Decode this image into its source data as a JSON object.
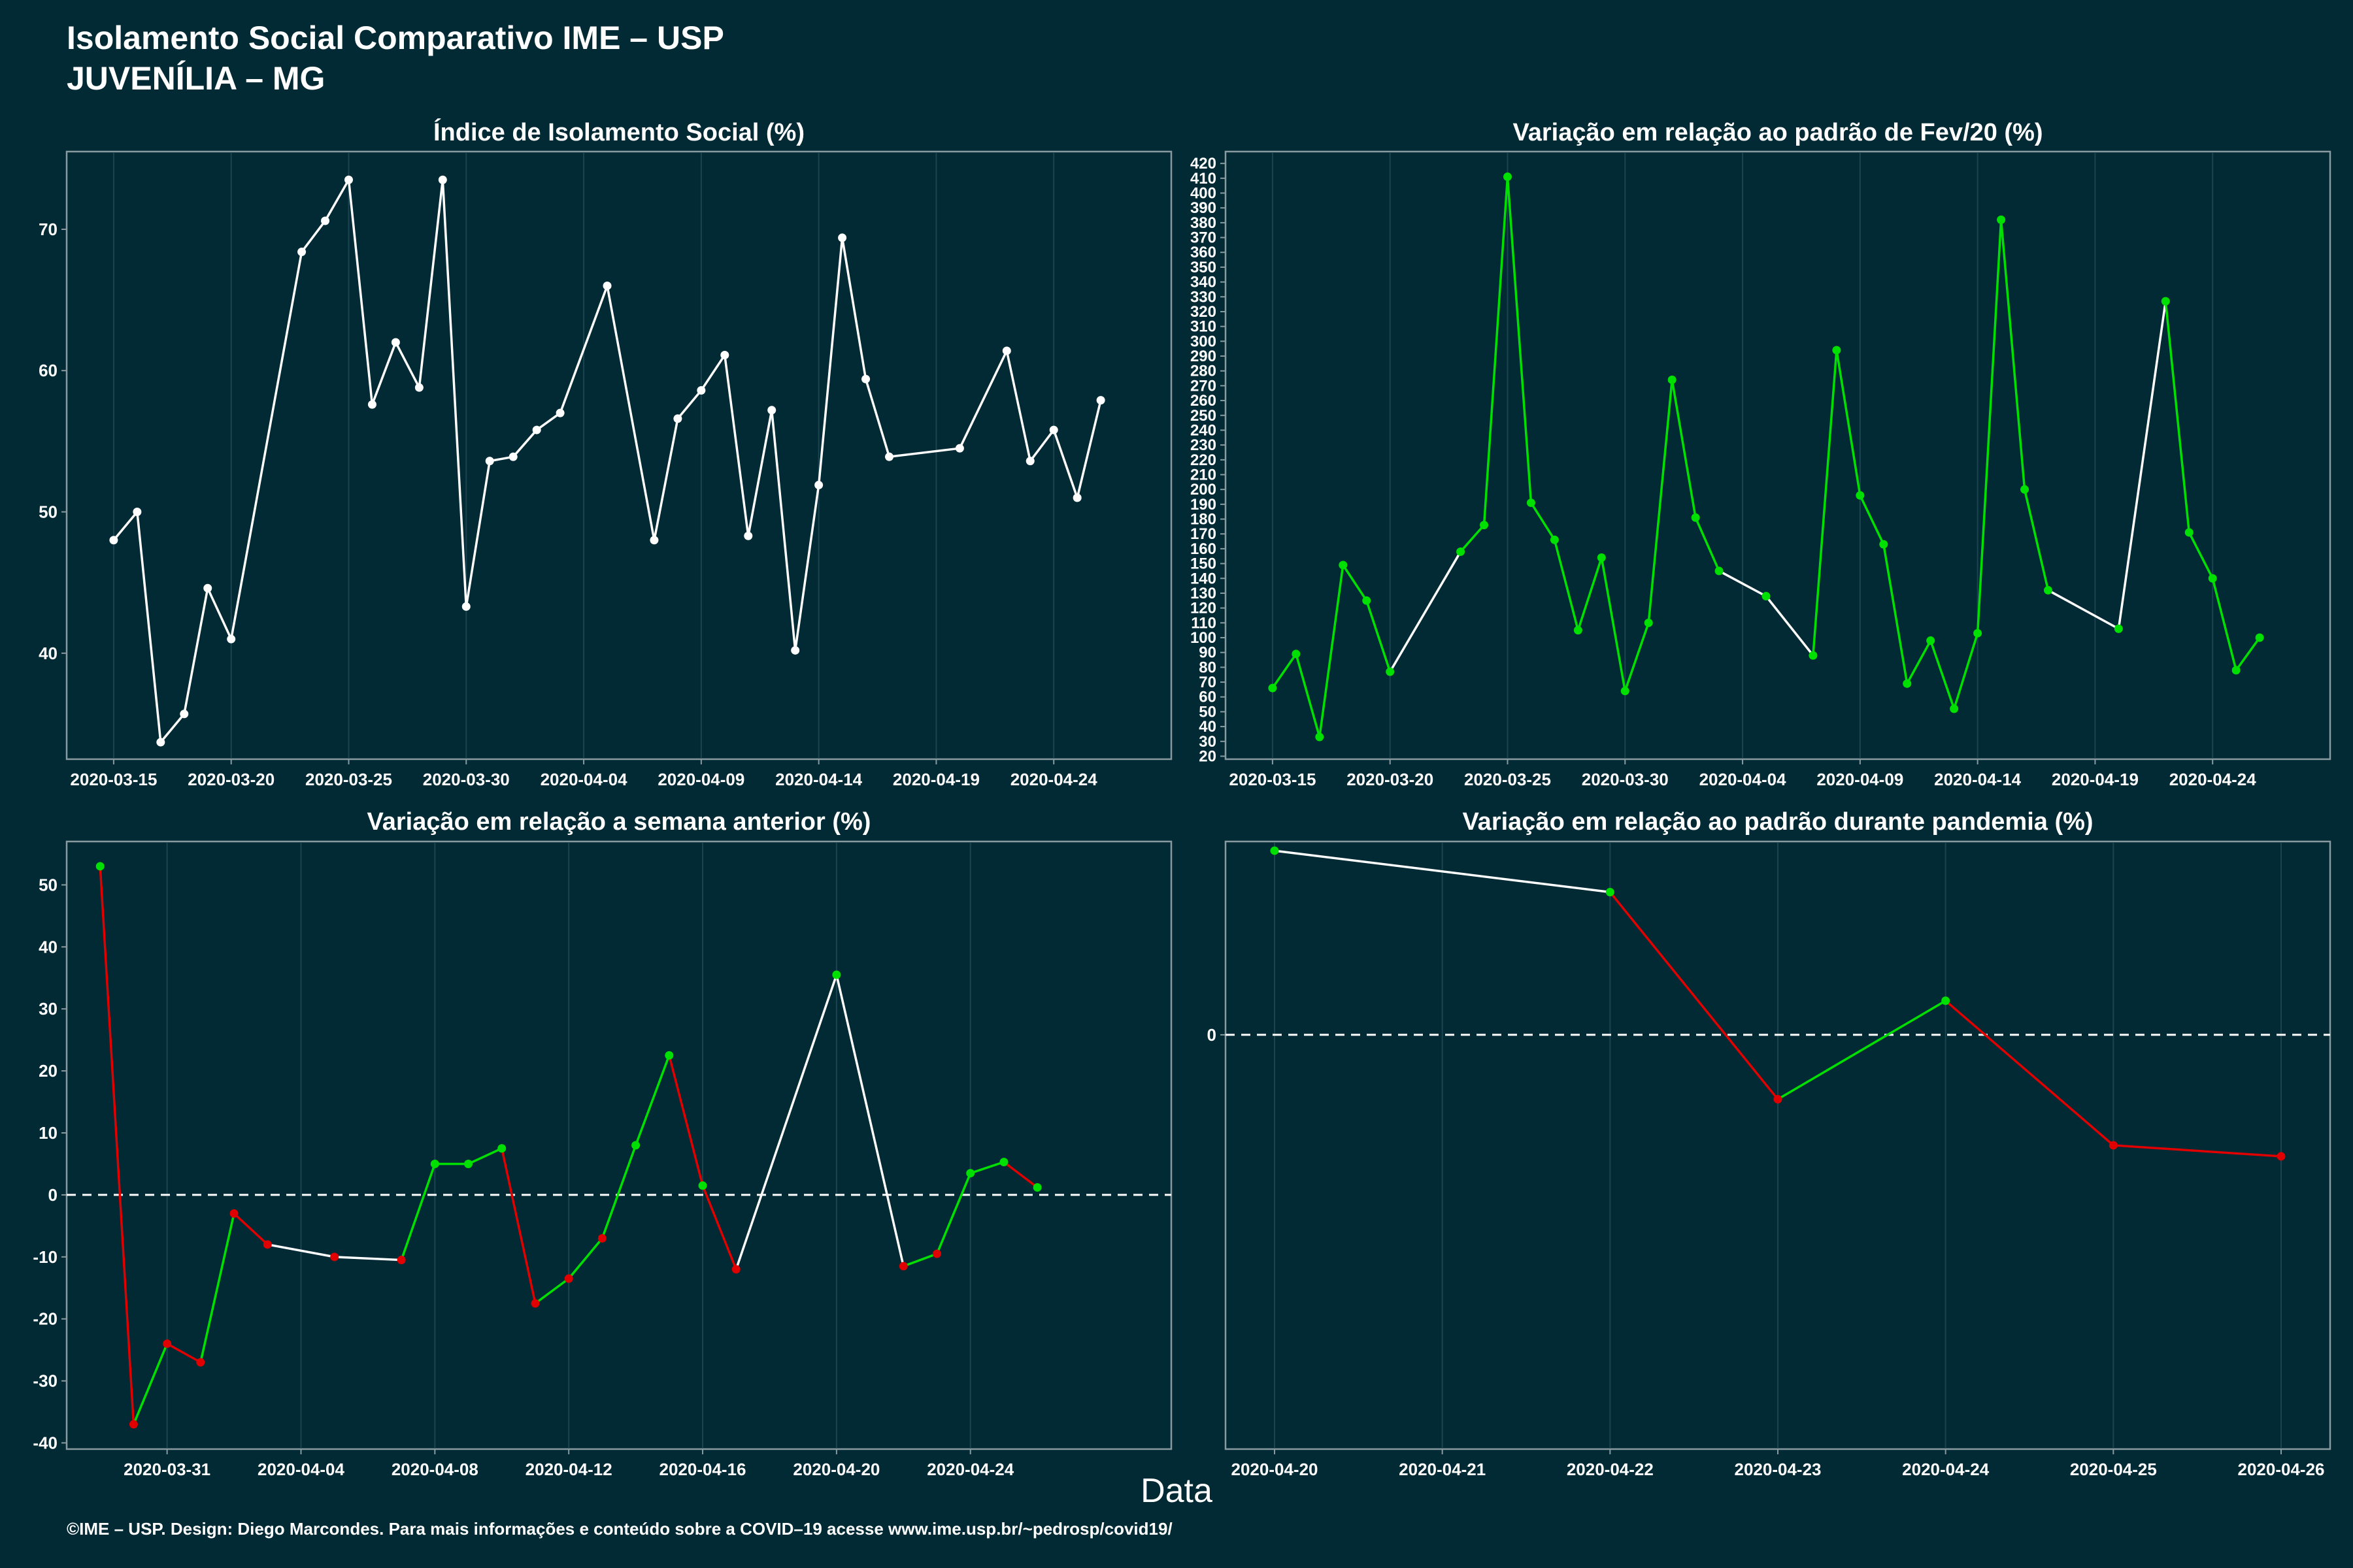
{
  "header": {
    "title": "Isolamento Social Comparativo IME – USP",
    "subtitle": "JUVENÍLIA – MG"
  },
  "xlabel": "Data",
  "footer": "©IME – USP. Design: Diego Marcondes. Para mais informações e conteúdo sobre a COVID–19 acesse www.ime.usp.br/~pedrosp/covid19/",
  "colors": {
    "background": "#012a35",
    "panel_border": "#8a9ba0",
    "grid": "#1c4450",
    "up": "#00e000",
    "down": "#e00000",
    "neutral": "#ffffff"
  },
  "chart_data": [
    {
      "type": "line",
      "title": "Índice de Isolamento Social (%)",
      "xlim": [
        "2020-03-13",
        "2020-04-29"
      ],
      "ylim": [
        32.5,
        75.5
      ],
      "yticks": [
        40,
        50,
        60,
        70
      ],
      "xticks": [
        "2020-03-15",
        "2020-03-20",
        "2020-03-25",
        "2020-03-30",
        "2020-04-04",
        "2020-04-09",
        "2020-04-14",
        "2020-04-19",
        "2020-04-24"
      ],
      "color_mode": "white",
      "points": [
        {
          "x": "2020-03-15",
          "y": 48.0
        },
        {
          "x": "2020-03-16",
          "y": 50.0
        },
        {
          "x": "2020-03-17",
          "y": 33.7
        },
        {
          "x": "2020-03-18",
          "y": 35.7
        },
        {
          "x": "2020-03-19",
          "y": 44.6
        },
        {
          "x": "2020-03-20",
          "y": 41.0
        },
        {
          "x": "2020-03-23",
          "y": 68.4
        },
        {
          "x": "2020-03-24",
          "y": 70.6
        },
        {
          "x": "2020-03-25",
          "y": 73.5
        },
        {
          "x": "2020-03-26",
          "y": 57.6
        },
        {
          "x": "2020-03-27",
          "y": 62.0
        },
        {
          "x": "2020-03-28",
          "y": 58.8
        },
        {
          "x": "2020-03-29",
          "y": 73.5
        },
        {
          "x": "2020-03-30",
          "y": 43.3
        },
        {
          "x": "2020-03-31",
          "y": 53.6
        },
        {
          "x": "2020-04-01",
          "y": 53.9
        },
        {
          "x": "2020-04-02",
          "y": 55.8
        },
        {
          "x": "2020-04-03",
          "y": 57.0
        },
        {
          "x": "2020-04-05",
          "y": 66.0
        },
        {
          "x": "2020-04-07",
          "y": 48.0
        },
        {
          "x": "2020-04-08",
          "y": 56.6
        },
        {
          "x": "2020-04-09",
          "y": 58.6
        },
        {
          "x": "2020-04-10",
          "y": 61.1
        },
        {
          "x": "2020-04-11",
          "y": 48.3
        },
        {
          "x": "2020-04-12",
          "y": 57.2
        },
        {
          "x": "2020-04-13",
          "y": 40.2
        },
        {
          "x": "2020-04-14",
          "y": 51.9
        },
        {
          "x": "2020-04-15",
          "y": 69.4
        },
        {
          "x": "2020-04-16",
          "y": 59.4
        },
        {
          "x": "2020-04-17",
          "y": 53.9
        },
        {
          "x": "2020-04-20",
          "y": 54.5
        },
        {
          "x": "2020-04-22",
          "y": 61.4
        },
        {
          "x": "2020-04-23",
          "y": 53.6
        },
        {
          "x": "2020-04-24",
          "y": 55.8
        },
        {
          "x": "2020-04-25",
          "y": 51.0
        },
        {
          "x": "2020-04-26",
          "y": 57.9
        }
      ]
    },
    {
      "type": "line",
      "title": "Variação em relação ao padrão de Fev/20 (%)",
      "xlim": [
        "2020-03-13",
        "2020-04-29"
      ],
      "ylim": [
        18,
        428
      ],
      "yticks": [
        20,
        30,
        40,
        50,
        60,
        70,
        80,
        90,
        100,
        110,
        120,
        130,
        140,
        150,
        160,
        170,
        180,
        190,
        200,
        210,
        220,
        230,
        240,
        250,
        260,
        270,
        280,
        290,
        300,
        310,
        320,
        330,
        340,
        350,
        360,
        370,
        380,
        390,
        400,
        410,
        420
      ],
      "xticks": [
        "2020-03-15",
        "2020-03-20",
        "2020-03-25",
        "2020-03-30",
        "2020-04-04",
        "2020-04-09",
        "2020-04-14",
        "2020-04-19",
        "2020-04-24"
      ],
      "color_mode": "change",
      "points": [
        {
          "x": "2020-03-15",
          "y": 66
        },
        {
          "x": "2020-03-16",
          "y": 89
        },
        {
          "x": "2020-03-17",
          "y": 33
        },
        {
          "x": "2020-03-18",
          "y": 149
        },
        {
          "x": "2020-03-19",
          "y": 125
        },
        {
          "x": "2020-03-20",
          "y": 77
        },
        {
          "x": "2020-03-23",
          "y": 158
        },
        {
          "x": "2020-03-24",
          "y": 176
        },
        {
          "x": "2020-03-25",
          "y": 411
        },
        {
          "x": "2020-03-26",
          "y": 191
        },
        {
          "x": "2020-03-27",
          "y": 166
        },
        {
          "x": "2020-03-28",
          "y": 105
        },
        {
          "x": "2020-03-29",
          "y": 154
        },
        {
          "x": "2020-03-30",
          "y": 64
        },
        {
          "x": "2020-03-31",
          "y": 110
        },
        {
          "x": "2020-04-01",
          "y": 274
        },
        {
          "x": "2020-04-02",
          "y": 181
        },
        {
          "x": "2020-04-03",
          "y": 145
        },
        {
          "x": "2020-04-05",
          "y": 128
        },
        {
          "x": "2020-04-07",
          "y": 88
        },
        {
          "x": "2020-04-08",
          "y": 294
        },
        {
          "x": "2020-04-09",
          "y": 196
        },
        {
          "x": "2020-04-10",
          "y": 163
        },
        {
          "x": "2020-04-11",
          "y": 69
        },
        {
          "x": "2020-04-12",
          "y": 98
        },
        {
          "x": "2020-04-13",
          "y": 52
        },
        {
          "x": "2020-04-14",
          "y": 103
        },
        {
          "x": "2020-04-15",
          "y": 382
        },
        {
          "x": "2020-04-16",
          "y": 200
        },
        {
          "x": "2020-04-17",
          "y": 132
        },
        {
          "x": "2020-04-20",
          "y": 106
        },
        {
          "x": "2020-04-22",
          "y": 327
        },
        {
          "x": "2020-04-23",
          "y": 171
        },
        {
          "x": "2020-04-24",
          "y": 140
        },
        {
          "x": "2020-04-25",
          "y": 78
        },
        {
          "x": "2020-04-26",
          "y": 100
        }
      ]
    },
    {
      "type": "line",
      "title": "Variação em relação a semana anterior (%)",
      "xlim": [
        "2020-03-28",
        "2020-04-30"
      ],
      "ylim": [
        -41,
        57
      ],
      "yticks": [
        -40,
        -30,
        -20,
        -10,
        0,
        10,
        20,
        30,
        40,
        50
      ],
      "xticks": [
        "2020-03-31",
        "2020-04-04",
        "2020-04-08",
        "2020-04-12",
        "2020-04-16",
        "2020-04-20",
        "2020-04-24"
      ],
      "zero_line": true,
      "color_mode": "sign",
      "points": [
        {
          "x": "2020-03-29",
          "y": 53
        },
        {
          "x": "2020-03-30",
          "y": -37
        },
        {
          "x": "2020-03-31",
          "y": -24
        },
        {
          "x": "2020-04-01",
          "y": -27
        },
        {
          "x": "2020-04-02",
          "y": -3
        },
        {
          "x": "2020-04-03",
          "y": -8
        },
        {
          "x": "2020-04-05",
          "y": -10
        },
        {
          "x": "2020-04-07",
          "y": -10.5
        },
        {
          "x": "2020-04-08",
          "y": 5
        },
        {
          "x": "2020-04-09",
          "y": 5
        },
        {
          "x": "2020-04-10",
          "y": 7.5
        },
        {
          "x": "2020-04-11",
          "y": -17.5
        },
        {
          "x": "2020-04-12",
          "y": -13.5
        },
        {
          "x": "2020-04-13",
          "y": -7
        },
        {
          "x": "2020-04-14",
          "y": 8
        },
        {
          "x": "2020-04-15",
          "y": 22.5
        },
        {
          "x": "2020-04-16",
          "y": 1.5
        },
        {
          "x": "2020-04-17",
          "y": -12
        },
        {
          "x": "2020-04-20",
          "y": 35.5
        },
        {
          "x": "2020-04-22",
          "y": -11.5
        },
        {
          "x": "2020-04-23",
          "y": -9.5
        },
        {
          "x": "2020-04-24",
          "y": 3.5
        },
        {
          "x": "2020-04-25",
          "y": 5.3
        },
        {
          "x": "2020-04-26",
          "y": 1.2
        }
      ]
    },
    {
      "type": "line",
      "title": "Variação em relação ao padrão durante pandemia (%)",
      "x_mode": "categorical",
      "categories": [
        "2020-04-20",
        "2020-04-21",
        "2020-04-22",
        "2020-04-23",
        "2020-04-24",
        "2020-04-25",
        "2020-04-26"
      ],
      "xticks": [
        "2020-04-20",
        "2020-04-21",
        "2020-04-22",
        "2020-04-23",
        "2020-04-24",
        "2020-04-25",
        "2020-04-26"
      ],
      "ylim": [
        -45,
        21
      ],
      "yticks": [
        0
      ],
      "zero_line": true,
      "color_mode": "sign",
      "points": [
        {
          "x": "2020-04-20",
          "y": 20
        },
        {
          "x": "2020-04-22",
          "y": 15.5
        },
        {
          "x": "2020-04-23",
          "y": -7
        },
        {
          "x": "2020-04-24",
          "y": 3.7
        },
        {
          "x": "2020-04-25",
          "y": -12
        },
        {
          "x": "2020-04-26",
          "y": -13.2
        }
      ]
    }
  ]
}
